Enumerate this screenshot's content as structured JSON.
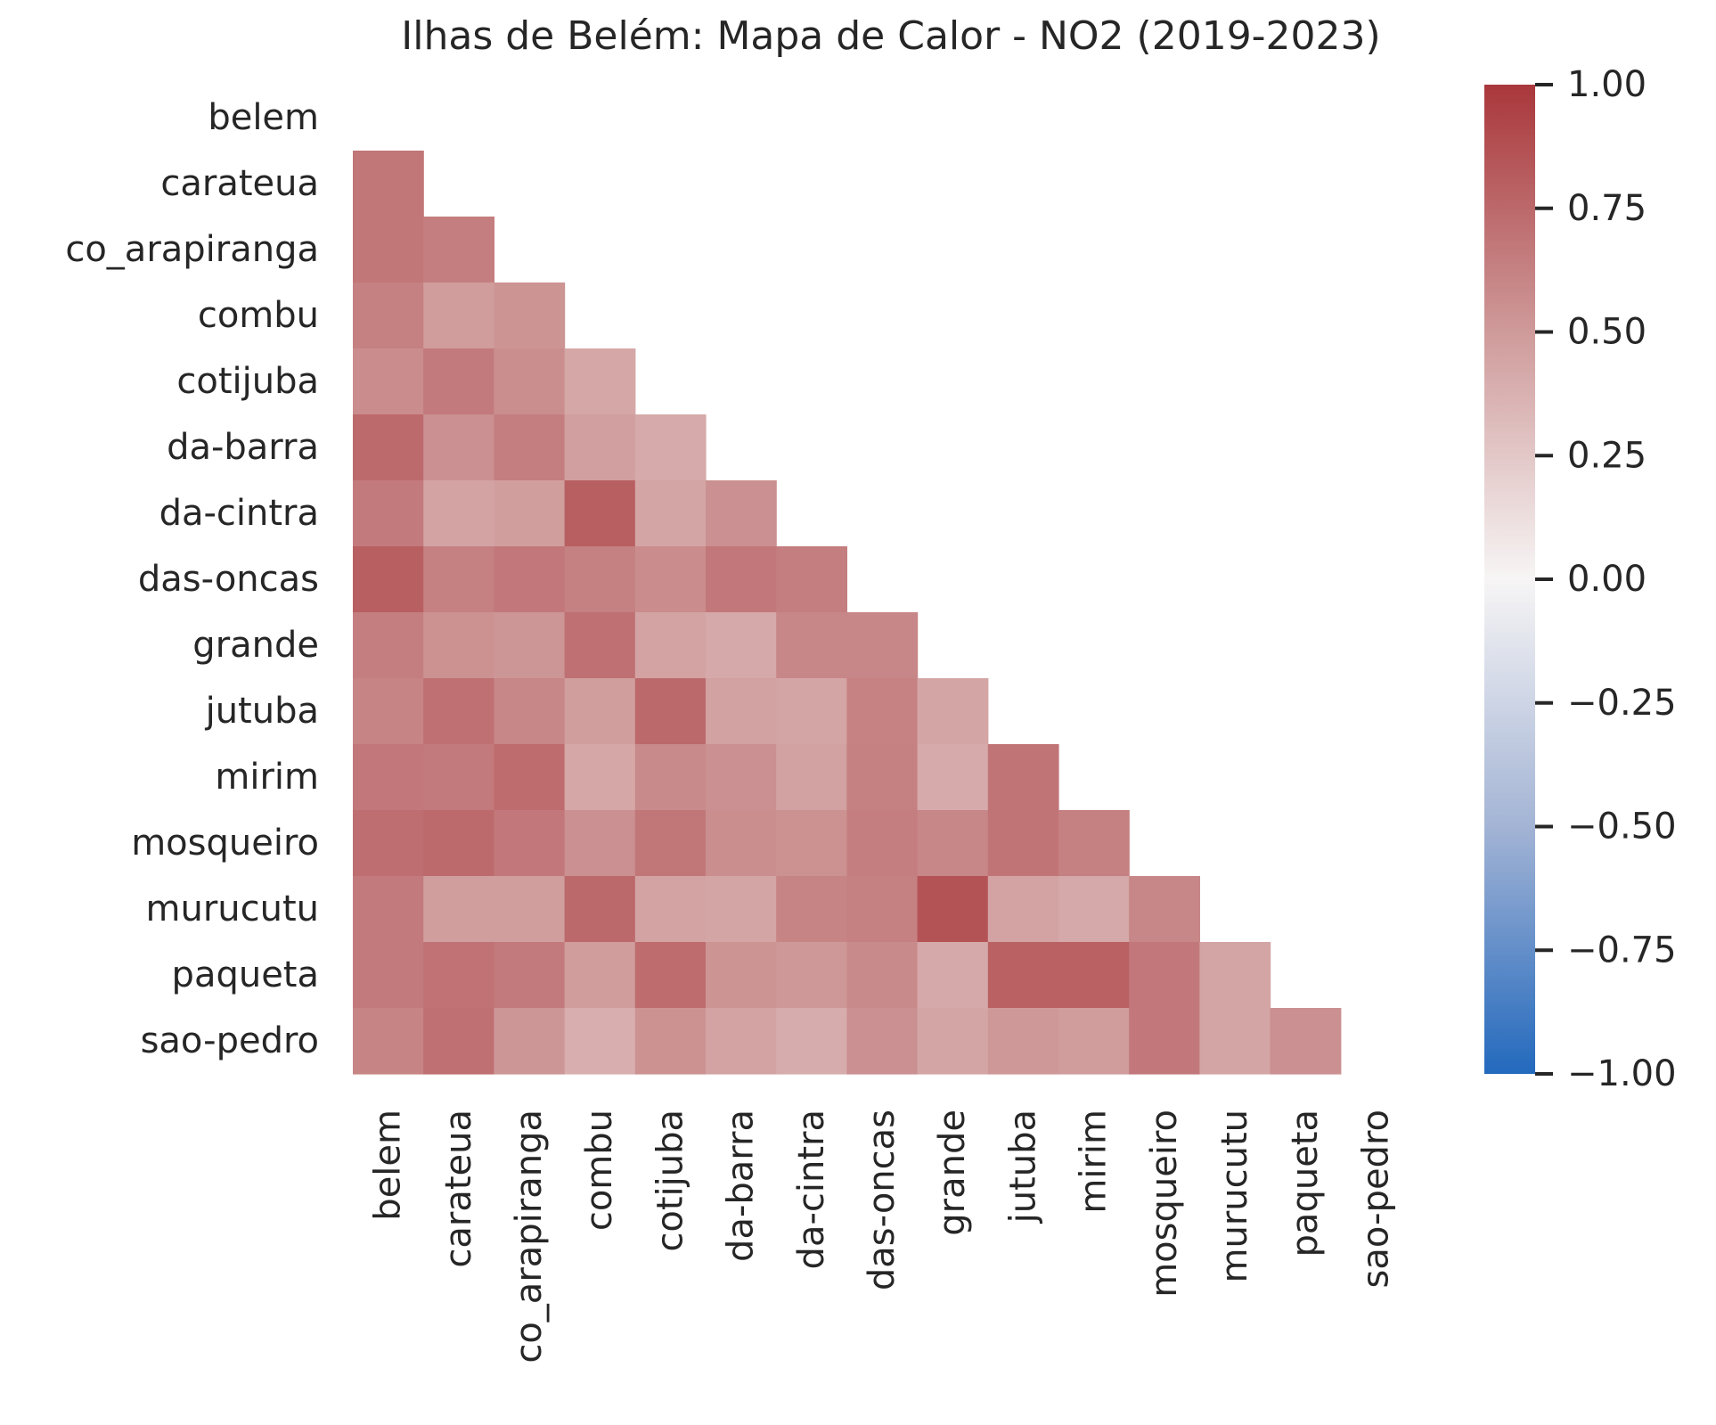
{
  "chart_data": {
    "type": "heatmap",
    "title": "Ilhas de Belém: Mapa de Calor - NO2 (2019-2023)",
    "xlabel": "",
    "ylabel": "",
    "mask": "upper triangle incl. diagonal",
    "labels": [
      "belem",
      "carateua",
      "co_arapiranga",
      "combu",
      "cotijuba",
      "da-barra",
      "da-cintra",
      "das-oncas",
      "grande",
      "jutuba",
      "mirim",
      "mosqueiro",
      "murucutu",
      "paqueta",
      "sao-pedro"
    ],
    "colormap": "vlag",
    "colormap_stops": [
      {
        "v": -1.0,
        "color": "#2369bd"
      },
      {
        "v": -0.5,
        "color": "#a3b4d5"
      },
      {
        "v": 0.0,
        "color": "#f7f5f5"
      },
      {
        "v": 0.5,
        "color": "#cf9a9a"
      },
      {
        "v": 1.0,
        "color": "#a9373b"
      }
    ],
    "vmin": -1.0,
    "vmax": 1.0,
    "colorbar_ticks": [
      1.0,
      0.75,
      0.5,
      0.25,
      0.0,
      -0.25,
      -0.5,
      -0.75,
      -1.0
    ],
    "colorbar_tick_labels": [
      "1.00",
      "0.75",
      "0.50",
      "0.25",
      "0.00",
      "−0.25",
      "−0.50",
      "−0.75",
      "−1.00"
    ],
    "matrix_lower": [
      [],
      [
        0.68
      ],
      [
        0.68,
        0.64
      ],
      [
        0.63,
        0.49,
        0.53
      ],
      [
        0.57,
        0.66,
        0.56,
        0.43
      ],
      [
        0.74,
        0.55,
        0.64,
        0.47,
        0.41
      ],
      [
        0.66,
        0.45,
        0.48,
        0.8,
        0.44,
        0.55
      ],
      [
        0.8,
        0.63,
        0.67,
        0.63,
        0.57,
        0.67,
        0.64
      ],
      [
        0.64,
        0.54,
        0.52,
        0.71,
        0.45,
        0.42,
        0.6,
        0.6
      ],
      [
        0.61,
        0.71,
        0.6,
        0.48,
        0.75,
        0.46,
        0.44,
        0.62,
        0.44
      ],
      [
        0.67,
        0.66,
        0.73,
        0.43,
        0.58,
        0.55,
        0.46,
        0.63,
        0.41,
        0.69
      ],
      [
        0.72,
        0.74,
        0.67,
        0.55,
        0.68,
        0.56,
        0.54,
        0.64,
        0.6,
        0.69,
        0.63
      ],
      [
        0.66,
        0.48,
        0.48,
        0.75,
        0.45,
        0.44,
        0.61,
        0.63,
        0.86,
        0.45,
        0.42,
        0.6
      ],
      [
        0.66,
        0.7,
        0.66,
        0.49,
        0.73,
        0.53,
        0.51,
        0.58,
        0.42,
        0.79,
        0.79,
        0.67,
        0.44
      ],
      [
        0.61,
        0.71,
        0.52,
        0.39,
        0.54,
        0.45,
        0.4,
        0.55,
        0.44,
        0.51,
        0.49,
        0.67,
        0.44,
        0.55
      ]
    ]
  }
}
